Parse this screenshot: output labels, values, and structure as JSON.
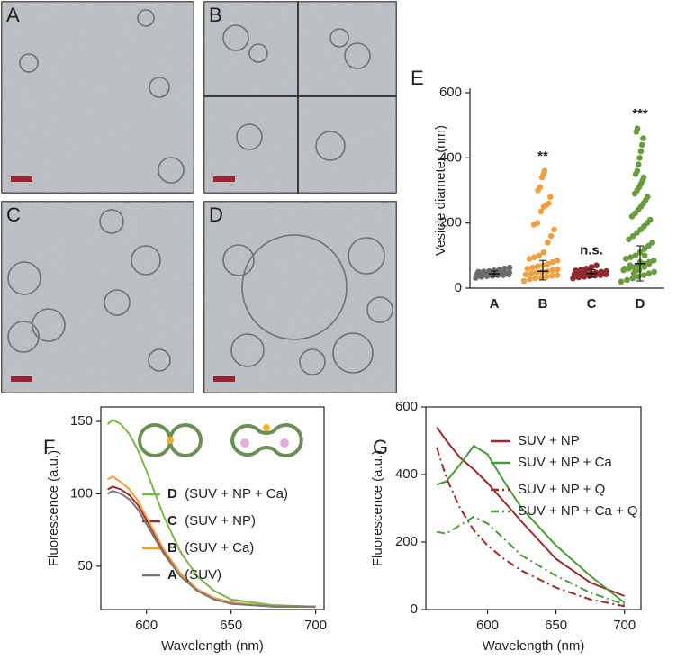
{
  "panels": [
    "A",
    "B",
    "C",
    "D"
  ],
  "chart_data": [
    {
      "type": "strip",
      "panel": "E",
      "ylabel": "Vesicle diameter (nm)",
      "categories": [
        "A",
        "B",
        "C",
        "D"
      ],
      "colors": [
        "#6b6b6b",
        "#f0a040",
        "#8e2a2e",
        "#6a9b3e"
      ],
      "points": [
        [
          32,
          35,
          37,
          38,
          40,
          40,
          42,
          43,
          44,
          45,
          45,
          46,
          47,
          48,
          50,
          51,
          52,
          54,
          56,
          60,
          63
        ],
        [
          22,
          28,
          30,
          33,
          35,
          38,
          40,
          42,
          45,
          48,
          50,
          52,
          55,
          58,
          60,
          63,
          67,
          70,
          75,
          80,
          85,
          90,
          95,
          100,
          110,
          140,
          160,
          180,
          195,
          200,
          235,
          250,
          255,
          260,
          280,
          300,
          310,
          340,
          350,
          360
        ],
        [
          30,
          33,
          35,
          37,
          39,
          40,
          42,
          43,
          45,
          46,
          47,
          48,
          50,
          52,
          54,
          57,
          60,
          65,
          70
        ],
        [
          20,
          25,
          30,
          35,
          40,
          45,
          50,
          55,
          60,
          65,
          70,
          75,
          80,
          85,
          90,
          95,
          100,
          110,
          120,
          130,
          140,
          150,
          160,
          170,
          180,
          190,
          200,
          210,
          220,
          230,
          240,
          250,
          260,
          270,
          280,
          290,
          300,
          310,
          320,
          330,
          340,
          350,
          360,
          380,
          400,
          420,
          440,
          460,
          480,
          490,
          45,
          55,
          65,
          75,
          85,
          60,
          70,
          50,
          80,
          100
        ]
      ],
      "mean": [
        44,
        52,
        45,
        75
      ],
      "error": [
        [
          36,
          53
        ],
        [
          25,
          85
        ],
        [
          33,
          57
        ],
        [
          22,
          130
        ]
      ],
      "significance": [
        null,
        "**",
        "n.s.",
        "***"
      ],
      "ylim": [
        0,
        600
      ],
      "yticks": [
        0,
        200,
        400,
        600
      ]
    },
    {
      "type": "line",
      "panel": "F",
      "xlabel": "Wavelength (nm)",
      "ylabel": "Fluorescence (a.u.)",
      "x": [
        577,
        580,
        585,
        590,
        595,
        600,
        610,
        620,
        630,
        640,
        650,
        675,
        700
      ],
      "series": [
        {
          "name": "D",
          "description": "(SUV + NP + Ca)",
          "color": "#7ab648",
          "dash": "solid",
          "values": [
            148,
            151,
            148,
            141,
            130,
            116,
            85,
            60,
            43,
            33,
            27,
            23,
            22
          ]
        },
        {
          "name": "C",
          "description": "(SUV + NP)",
          "color": "#a0282d",
          "dash": "solid",
          "values": [
            103,
            105,
            103,
            99,
            92,
            82,
            61,
            45,
            34,
            28,
            25,
            22,
            22
          ]
        },
        {
          "name": "B",
          "description": "(SUV + Ca)",
          "color": "#f0a040",
          "dash": "solid",
          "values": [
            110,
            112,
            108,
            103,
            95,
            84,
            62,
            45,
            34,
            28,
            25,
            22,
            22
          ]
        },
        {
          "name": "A",
          "description": "(SUV)",
          "color": "#777777",
          "dash": "solid",
          "values": [
            100,
            102,
            100,
            96,
            89,
            79,
            59,
            43,
            33,
            27,
            24,
            22,
            22
          ]
        }
      ],
      "xlim": [
        573,
        705
      ],
      "xticks": [
        600,
        650,
        700
      ],
      "ylim": [
        20,
        160
      ],
      "yticks": [
        50,
        100,
        150
      ]
    },
    {
      "type": "line",
      "panel": "G",
      "xlabel": "Wavelength (nm)",
      "ylabel": "Fluorescence (a.u.)",
      "x": [
        563,
        570,
        580,
        590,
        600,
        612,
        625,
        650,
        675,
        700
      ],
      "series": [
        {
          "name": "SUV + NP",
          "color": "#9b2a2a",
          "dash": "solid",
          "values": [
            540,
            500,
            450,
            415,
            375,
            320,
            260,
            150,
            80,
            40
          ]
        },
        {
          "name": "SUV + NP + Ca",
          "color": "#4a9a3a",
          "dash": "solid",
          "values": [
            370,
            380,
            430,
            485,
            460,
            380,
            300,
            190,
            100,
            20
          ]
        },
        {
          "name": "SUV + NP + Q",
          "color": "#9b2a2a",
          "dash": "dashdot",
          "values": [
            480,
            390,
            300,
            235,
            190,
            150,
            115,
            65,
            30,
            10
          ]
        },
        {
          "name": "SUV + NP + Ca + Q",
          "color": "#4a9a3a",
          "dash": "dashdot",
          "values": [
            230,
            225,
            250,
            275,
            255,
            210,
            160,
            100,
            50,
            15
          ]
        }
      ],
      "xlim": [
        555,
        712
      ],
      "xticks": [
        600,
        650,
        700
      ],
      "ylim": [
        0,
        600
      ],
      "yticks": [
        0,
        200,
        400,
        600
      ]
    }
  ]
}
